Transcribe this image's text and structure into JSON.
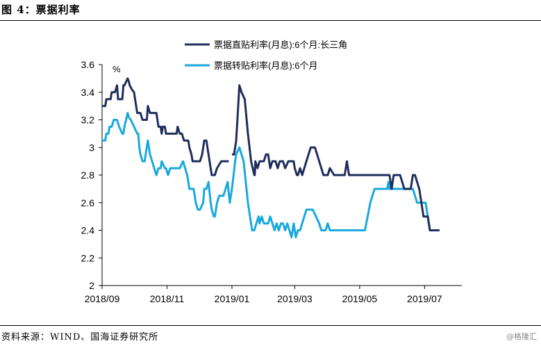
{
  "figure": {
    "title": "图 4：票据利率",
    "source": "资料来源：WIND、国海证券研究所",
    "watermark": "@格隆汇"
  },
  "chart_data": {
    "type": "line",
    "title": "票据利率",
    "ylabel": "%",
    "xlabel": "",
    "ylim": [
      2,
      3.6
    ],
    "yticks": [
      2,
      2.2,
      2.4,
      2.6,
      2.8,
      3,
      3.2,
      3.4,
      3.6
    ],
    "ytick_labels": [
      "2",
      "2.2",
      "2.4",
      "2.6",
      "2.8",
      "3",
      "3.2",
      "3.4",
      "3.6"
    ],
    "xlim": [
      0,
      338
    ],
    "xticks": [
      0,
      61,
      122,
      181,
      242,
      303
    ],
    "xtick_labels": [
      "2018/09",
      "2018/11",
      "2019/01",
      "2019/03",
      "2019/05",
      "2019/07"
    ],
    "grid": false,
    "legend": "top",
    "series": [
      {
        "name": "票据直贴利率(月息):6个月:长三角",
        "color": "#1f2d5c",
        "x": [
          0,
          3,
          4,
          8,
          9,
          12,
          13,
          14,
          15,
          17,
          19,
          20,
          21,
          24,
          25,
          26,
          28,
          30,
          31,
          33,
          34,
          36,
          38,
          40,
          42,
          43,
          45,
          48,
          51,
          53,
          55,
          56,
          57,
          59,
          60,
          62,
          64,
          66,
          68,
          70,
          71,
          73,
          75,
          77,
          79,
          81,
          82,
          84,
          85,
          87,
          88,
          90,
          92,
          94,
          95,
          96,
          98,
          101,
          102,
          103,
          106,
          108,
          112,
          115,
          117,
          119,
          121,
          122,
          124,
          125,
          126,
          129,
          131,
          134,
          137,
          140,
          143,
          143.5,
          144,
          146,
          148,
          150,
          152,
          154,
          156,
          158,
          160,
          162,
          163,
          165,
          167,
          168,
          170,
          172,
          175,
          178,
          180,
          181,
          183,
          184,
          186,
          188,
          190,
          192,
          194,
          196,
          198,
          200,
          202,
          204,
          206,
          208,
          210,
          212,
          214,
          218,
          222,
          225,
          228,
          230,
          232,
          235,
          237,
          240,
          241,
          243,
          246,
          249,
          252,
          255,
          258,
          261,
          263,
          265,
          267,
          268,
          270,
          272,
          274,
          276,
          280,
          284,
          286,
          288,
          290,
          292,
          294,
          296,
          298,
          300,
          302,
          304,
          306,
          308,
          311,
          313,
          317
        ],
        "values": [
          3.3,
          3.3,
          3.35,
          3.35,
          3.4,
          3.4,
          3.42,
          3.45,
          3.35,
          3.35,
          3.35,
          3.45,
          3.45,
          3.5,
          3.48,
          3.45,
          3.42,
          3.4,
          3.35,
          3.25,
          3.25,
          3.25,
          3.2,
          3.2,
          3.2,
          3.3,
          3.25,
          3.25,
          3.25,
          3.15,
          3.15,
          3.1,
          3.15,
          3.15,
          3.1,
          3.1,
          3.1,
          3.1,
          3.1,
          3.1,
          3.15,
          3.1,
          3.1,
          3.05,
          3.05,
          3.05,
          3,
          2.95,
          2.9,
          2.9,
          2.9,
          2.9,
          2.9,
          2.95,
          3,
          3.05,
          3.05,
          2.9,
          2.85,
          2.8,
          2.8,
          2.85,
          2.9,
          2.9,
          2.9,
          2.9,
          null,
          2.95,
          2.95,
          3,
          3.05,
          3.45,
          3.4,
          3.35,
          3.1,
          2.9,
          2.8,
          2.8,
          2.9,
          2.85,
          2.9,
          2.9,
          2.9,
          2.95,
          2.95,
          2.85,
          2.9,
          2.9,
          2.9,
          2.85,
          2.9,
          2.9,
          2.9,
          2.85,
          2.9,
          2.9,
          2.9,
          2.85,
          2.8,
          2.8,
          2.85,
          2.8,
          2.85,
          2.9,
          2.95,
          3,
          3,
          3,
          2.95,
          2.9,
          2.85,
          2.8,
          2.8,
          2.8,
          2.85,
          2.8,
          2.8,
          2.8,
          2.8,
          2.9,
          2.8,
          2.8,
          2.8,
          2.8,
          2.8,
          2.8,
          2.8,
          2.8,
          2.8,
          2.8,
          2.8,
          2.8,
          2.8,
          2.8,
          2.8,
          2.8,
          2.8,
          2.7,
          2.8,
          2.8,
          2.8,
          2.7,
          2.7,
          2.7,
          2.7,
          2.8,
          2.8,
          2.75,
          2.7,
          2.6,
          2.5,
          2.5,
          2.5,
          2.4,
          2.4,
          2.4,
          2.4
        ]
      },
      {
        "name": "票据转贴利率(月息):6个月",
        "color": "#18a8de",
        "x": [
          0,
          3,
          4,
          6,
          7,
          9,
          11,
          13,
          14,
          16,
          19,
          20,
          21,
          24,
          25,
          27,
          30,
          33,
          34,
          35,
          36,
          38,
          40,
          41,
          43,
          45,
          47,
          49,
          51,
          53,
          55,
          56,
          59,
          60,
          62,
          64,
          66,
          68,
          70,
          71,
          73,
          76,
          80,
          82,
          84,
          86,
          88,
          90,
          91,
          92,
          95,
          96,
          98,
          100,
          102,
          103,
          105,
          106,
          108,
          110,
          112,
          114,
          116,
          118,
          120,
          122,
          125,
          126,
          129,
          131,
          133,
          135,
          137,
          139,
          141,
          143,
          145,
          147,
          148,
          150,
          152,
          154,
          156,
          158,
          160,
          162,
          164,
          166,
          168,
          170,
          172,
          174,
          176,
          178,
          180,
          182,
          184,
          186,
          188,
          190,
          192,
          195,
          198,
          201,
          204,
          206,
          208,
          210,
          212,
          214,
          216,
          218,
          220,
          222,
          224,
          226,
          228,
          232,
          236,
          240,
          244,
          247,
          252,
          256,
          260,
          264,
          268,
          269,
          270,
          272,
          274,
          276,
          278,
          280,
          284,
          288,
          290,
          292,
          294,
          296,
          298,
          300,
          302,
          304,
          306,
          308,
          310,
          312,
          314,
          316,
          317
        ],
        "values": [
          3.05,
          3.05,
          3.1,
          3.1,
          3.15,
          3.15,
          3.2,
          3.2,
          3.2,
          3.15,
          3.1,
          3.1,
          3.15,
          3.25,
          3.22,
          3.2,
          3.15,
          3.1,
          3.1,
          3,
          2.95,
          2.9,
          2.9,
          2.95,
          3.05,
          2.95,
          2.9,
          2.85,
          2.8,
          2.85,
          2.85,
          2.9,
          2.85,
          2.85,
          2.8,
          2.85,
          2.85,
          2.85,
          2.85,
          2.85,
          2.85,
          2.9,
          2.8,
          2.7,
          2.7,
          2.7,
          2.6,
          2.55,
          2.55,
          2.55,
          2.6,
          2.7,
          2.7,
          2.75,
          2.6,
          2.55,
          2.5,
          2.5,
          2.6,
          2.65,
          2.65,
          2.65,
          2.7,
          2.75,
          2.6,
          2.7,
          2.9,
          2.95,
          3,
          2.95,
          2.9,
          2.75,
          2.6,
          2.5,
          2.4,
          2.4,
          2.45,
          2.5,
          2.45,
          2.5,
          2.45,
          2.45,
          2.45,
          2.5,
          2.45,
          2.4,
          2.45,
          2.4,
          2.45,
          2.45,
          2.4,
          2.45,
          2.4,
          2.35,
          2.45,
          2.35,
          2.4,
          2.4,
          2.45,
          2.5,
          2.55,
          2.55,
          2.55,
          2.5,
          2.45,
          2.4,
          2.4,
          2.4,
          2.45,
          2.4,
          2.4,
          2.4,
          2.4,
          2.4,
          2.4,
          2.4,
          2.4,
          2.4,
          2.4,
          2.4,
          2.4,
          2.4,
          2.6,
          2.7,
          2.7,
          2.7,
          2.7,
          2.75,
          2.7,
          2.7,
          2.7,
          2.7,
          2.7,
          2.7,
          2.7,
          2.7,
          2.7,
          2.7,
          2.65,
          2.6,
          2.6,
          2.6,
          2.6,
          2.6,
          2.5,
          2.4,
          2.4,
          2.4,
          2.4,
          2.4,
          2.4
        ]
      }
    ]
  }
}
